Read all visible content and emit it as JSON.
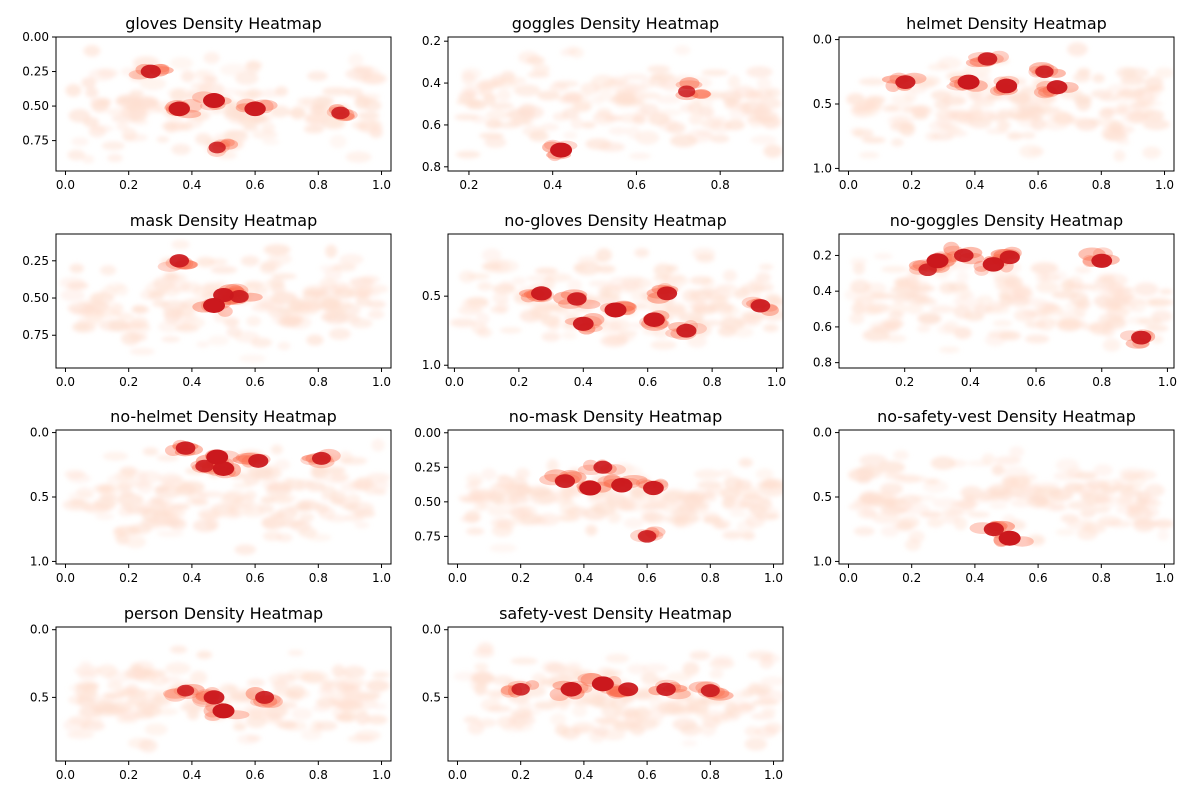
{
  "figure": {
    "background": "#ffffff"
  },
  "colormap": {
    "name": "Reds",
    "light": "#fee0d2",
    "mid": "#fb6a4a",
    "dark": "#cb181d"
  },
  "chart_data": [
    {
      "type": "heatmap",
      "title": "gloves Density Heatmap",
      "xlabel": "",
      "ylabel": "",
      "xlim": [
        -0.03,
        1.03
      ],
      "ylim": [
        0.97,
        0.0
      ],
      "y_inverted": true,
      "x_ticks": [
        0.0,
        0.2,
        0.4,
        0.6,
        0.8,
        1.0
      ],
      "x_tick_labels": [
        "0.0",
        "0.2",
        "0.4",
        "0.6",
        "0.8",
        "1.0"
      ],
      "y_ticks": [
        0.0,
        0.25,
        0.5,
        0.75
      ],
      "y_tick_labels": [
        "0.00",
        "0.25",
        "0.50",
        "0.75"
      ],
      "hotspots": [
        {
          "x": 0.47,
          "y": 0.46,
          "level": 1.0
        },
        {
          "x": 0.36,
          "y": 0.52,
          "level": 0.95
        },
        {
          "x": 0.6,
          "y": 0.52,
          "level": 0.95
        },
        {
          "x": 0.27,
          "y": 0.25,
          "level": 0.85
        },
        {
          "x": 0.87,
          "y": 0.55,
          "level": 0.7
        },
        {
          "x": 0.48,
          "y": 0.8,
          "level": 0.6
        }
      ],
      "spread": {
        "x": [
          0.02,
          1.0
        ],
        "y": [
          0.05,
          0.95
        ]
      }
    },
    {
      "type": "heatmap",
      "title": "goggles Density Heatmap",
      "xlabel": "",
      "ylabel": "",
      "xlim": [
        0.15,
        0.95
      ],
      "ylim": [
        0.82,
        0.18
      ],
      "y_inverted": true,
      "x_ticks": [
        0.2,
        0.4,
        0.6,
        0.8
      ],
      "x_tick_labels": [
        "0.2",
        "0.4",
        "0.6",
        "0.8"
      ],
      "y_ticks": [
        0.2,
        0.4,
        0.6,
        0.8
      ],
      "y_tick_labels": [
        "0.2",
        "0.4",
        "0.6",
        "0.8"
      ],
      "hotspots": [
        {
          "x": 0.42,
          "y": 0.72,
          "level": 1.0
        },
        {
          "x": 0.72,
          "y": 0.44,
          "level": 0.6
        }
      ],
      "spread": {
        "x": [
          0.18,
          0.93
        ],
        "y": [
          0.2,
          0.8
        ]
      }
    },
    {
      "type": "heatmap",
      "title": "helmet Density Heatmap",
      "xlabel": "",
      "ylabel": "",
      "xlim": [
        -0.03,
        1.03
      ],
      "ylim": [
        1.02,
        -0.02
      ],
      "y_inverted": true,
      "x_ticks": [
        0.0,
        0.2,
        0.4,
        0.6,
        0.8,
        1.0
      ],
      "x_tick_labels": [
        "0.0",
        "0.2",
        "0.4",
        "0.6",
        "0.8",
        "1.0"
      ],
      "y_ticks": [
        0.0,
        0.5,
        1.0
      ],
      "y_tick_labels": [
        "0.0",
        "0.5",
        "1.0"
      ],
      "hotspots": [
        {
          "x": 0.38,
          "y": 0.33,
          "level": 1.0
        },
        {
          "x": 0.5,
          "y": 0.36,
          "level": 0.95
        },
        {
          "x": 0.66,
          "y": 0.37,
          "level": 0.9
        },
        {
          "x": 0.18,
          "y": 0.33,
          "level": 0.85
        },
        {
          "x": 0.44,
          "y": 0.15,
          "level": 0.8
        },
        {
          "x": 0.62,
          "y": 0.25,
          "level": 0.7
        }
      ],
      "spread": {
        "x": [
          0.02,
          1.0
        ],
        "y": [
          0.05,
          1.0
        ]
      }
    },
    {
      "type": "heatmap",
      "title": "mask Density Heatmap",
      "xlabel": "",
      "ylabel": "",
      "xlim": [
        -0.03,
        1.03
      ],
      "ylim": [
        0.97,
        0.07
      ],
      "y_inverted": true,
      "x_ticks": [
        0.0,
        0.2,
        0.4,
        0.6,
        0.8,
        1.0
      ],
      "x_tick_labels": [
        "0.0",
        "0.2",
        "0.4",
        "0.6",
        "0.8",
        "1.0"
      ],
      "y_ticks": [
        0.25,
        0.5,
        0.75
      ],
      "y_tick_labels": [
        "0.25",
        "0.50",
        "0.75"
      ],
      "hotspots": [
        {
          "x": 0.47,
          "y": 0.55,
          "level": 1.0
        },
        {
          "x": 0.5,
          "y": 0.48,
          "level": 0.9
        },
        {
          "x": 0.36,
          "y": 0.25,
          "level": 0.8
        },
        {
          "x": 0.55,
          "y": 0.49,
          "level": 0.75
        }
      ],
      "spread": {
        "x": [
          0.02,
          1.0
        ],
        "y": [
          0.1,
          0.95
        ]
      }
    },
    {
      "type": "heatmap",
      "title": "no-gloves Density Heatmap",
      "xlabel": "",
      "ylabel": "",
      "xlim": [
        -0.02,
        1.02
      ],
      "ylim": [
        1.02,
        0.05
      ],
      "y_inverted": true,
      "x_ticks": [
        0.0,
        0.2,
        0.4,
        0.6,
        0.8,
        1.0
      ],
      "x_tick_labels": [
        "0.0",
        "0.2",
        "0.4",
        "0.6",
        "0.8",
        "1.0"
      ],
      "y_ticks": [
        0.5,
        1.0
      ],
      "y_tick_labels": [
        "0.5",
        "1.0"
      ],
      "hotspots": [
        {
          "x": 0.5,
          "y": 0.6,
          "level": 1.0
        },
        {
          "x": 0.62,
          "y": 0.67,
          "level": 0.95
        },
        {
          "x": 0.27,
          "y": 0.48,
          "level": 0.9
        },
        {
          "x": 0.4,
          "y": 0.7,
          "level": 0.9
        },
        {
          "x": 0.66,
          "y": 0.48,
          "level": 0.85
        },
        {
          "x": 0.72,
          "y": 0.75,
          "level": 0.85
        },
        {
          "x": 0.38,
          "y": 0.52,
          "level": 0.8
        },
        {
          "x": 0.95,
          "y": 0.57,
          "level": 0.8
        }
      ],
      "spread": {
        "x": [
          0.02,
          1.0
        ],
        "y": [
          0.1,
          1.0
        ]
      }
    },
    {
      "type": "heatmap",
      "title": "no-goggles Density Heatmap",
      "xlabel": "",
      "ylabel": "",
      "xlim": [
        0.0,
        1.02
      ],
      "ylim": [
        0.83,
        0.08
      ],
      "y_inverted": true,
      "x_ticks": [
        0.2,
        0.4,
        0.6,
        0.8,
        1.0
      ],
      "x_tick_labels": [
        "0.2",
        "0.4",
        "0.6",
        "0.8",
        "1.0"
      ],
      "y_ticks": [
        0.2,
        0.4,
        0.6,
        0.8
      ],
      "y_tick_labels": [
        "0.2",
        "0.4",
        "0.6",
        "0.8"
      ],
      "hotspots": [
        {
          "x": 0.3,
          "y": 0.23,
          "level": 1.0
        },
        {
          "x": 0.47,
          "y": 0.25,
          "level": 0.95
        },
        {
          "x": 0.8,
          "y": 0.23,
          "level": 0.9
        },
        {
          "x": 0.52,
          "y": 0.21,
          "level": 0.85
        },
        {
          "x": 0.38,
          "y": 0.2,
          "level": 0.8
        },
        {
          "x": 0.92,
          "y": 0.66,
          "level": 0.85
        },
        {
          "x": 0.27,
          "y": 0.28,
          "level": 0.7
        }
      ],
      "spread": {
        "x": [
          0.05,
          1.0
        ],
        "y": [
          0.1,
          0.8
        ]
      }
    },
    {
      "type": "heatmap",
      "title": "no-helmet Density Heatmap",
      "xlabel": "",
      "ylabel": "",
      "xlim": [
        -0.03,
        1.03
      ],
      "ylim": [
        1.02,
        -0.02
      ],
      "y_inverted": true,
      "x_ticks": [
        0.0,
        0.2,
        0.4,
        0.6,
        0.8,
        1.0
      ],
      "x_tick_labels": [
        "0.0",
        "0.2",
        "0.4",
        "0.6",
        "0.8",
        "1.0"
      ],
      "y_ticks": [
        0.0,
        0.5,
        1.0
      ],
      "y_tick_labels": [
        "0.0",
        "0.5",
        "1.0"
      ],
      "hotspots": [
        {
          "x": 0.48,
          "y": 0.19,
          "level": 1.0
        },
        {
          "x": 0.5,
          "y": 0.28,
          "level": 0.95
        },
        {
          "x": 0.61,
          "y": 0.22,
          "level": 0.85
        },
        {
          "x": 0.38,
          "y": 0.12,
          "level": 0.8
        },
        {
          "x": 0.81,
          "y": 0.2,
          "level": 0.75
        },
        {
          "x": 0.44,
          "y": 0.26,
          "level": 0.7
        }
      ],
      "spread": {
        "x": [
          0.02,
          1.0
        ],
        "y": [
          0.02,
          1.0
        ]
      }
    },
    {
      "type": "heatmap",
      "title": "no-mask Density Heatmap",
      "xlabel": "",
      "ylabel": "",
      "xlim": [
        -0.03,
        1.03
      ],
      "ylim": [
        0.95,
        -0.02
      ],
      "y_inverted": true,
      "x_ticks": [
        0.0,
        0.2,
        0.4,
        0.6,
        0.8,
        1.0
      ],
      "x_tick_labels": [
        "0.0",
        "0.2",
        "0.4",
        "0.6",
        "0.8",
        "1.0"
      ],
      "y_ticks": [
        0.0,
        0.25,
        0.5,
        0.75
      ],
      "y_tick_labels": [
        "0.00",
        "0.25",
        "0.50",
        "0.75"
      ],
      "hotspots": [
        {
          "x": 0.42,
          "y": 0.4,
          "level": 1.0
        },
        {
          "x": 0.52,
          "y": 0.38,
          "level": 0.95
        },
        {
          "x": 0.62,
          "y": 0.4,
          "level": 0.9
        },
        {
          "x": 0.34,
          "y": 0.35,
          "level": 0.85
        },
        {
          "x": 0.46,
          "y": 0.25,
          "level": 0.75
        },
        {
          "x": 0.6,
          "y": 0.75,
          "level": 0.7
        }
      ],
      "spread": {
        "x": [
          0.02,
          1.0
        ],
        "y": [
          0.1,
          0.9
        ]
      }
    },
    {
      "type": "heatmap",
      "title": "no-safety-vest Density Heatmap",
      "xlabel": "",
      "ylabel": "",
      "xlim": [
        -0.03,
        1.03
      ],
      "ylim": [
        1.02,
        -0.02
      ],
      "y_inverted": true,
      "x_ticks": [
        0.0,
        0.2,
        0.4,
        0.6,
        0.8,
        1.0
      ],
      "x_tick_labels": [
        "0.0",
        "0.2",
        "0.4",
        "0.6",
        "0.8",
        "1.0"
      ],
      "y_ticks": [
        0.0,
        0.5,
        1.0
      ],
      "y_tick_labels": [
        "0.0",
        "0.5",
        "1.0"
      ],
      "hotspots": [
        {
          "x": 0.51,
          "y": 0.82,
          "level": 1.0
        },
        {
          "x": 0.46,
          "y": 0.75,
          "level": 0.85
        }
      ],
      "spread": {
        "x": [
          0.02,
          1.0
        ],
        "y": [
          0.05,
          0.95
        ]
      }
    },
    {
      "type": "heatmap",
      "title": "person Density Heatmap",
      "xlabel": "",
      "ylabel": "",
      "xlim": [
        -0.03,
        1.03
      ],
      "ylim": [
        0.97,
        -0.02
      ],
      "y_inverted": true,
      "x_ticks": [
        0.0,
        0.2,
        0.4,
        0.6,
        0.8,
        1.0
      ],
      "x_tick_labels": [
        "0.0",
        "0.2",
        "0.4",
        "0.6",
        "0.8",
        "1.0"
      ],
      "y_ticks": [
        0.0,
        0.5
      ],
      "y_tick_labels": [
        "0.0",
        "0.5"
      ],
      "hotspots": [
        {
          "x": 0.5,
          "y": 0.6,
          "level": 1.0
        },
        {
          "x": 0.47,
          "y": 0.5,
          "level": 0.9
        },
        {
          "x": 0.63,
          "y": 0.5,
          "level": 0.75
        },
        {
          "x": 0.38,
          "y": 0.45,
          "level": 0.6
        }
      ],
      "spread": {
        "x": [
          0.02,
          1.0
        ],
        "y": [
          0.05,
          0.95
        ]
      }
    },
    {
      "type": "heatmap",
      "title": "safety-vest Density Heatmap",
      "xlabel": "",
      "ylabel": "",
      "xlim": [
        -0.03,
        1.03
      ],
      "ylim": [
        0.97,
        -0.02
      ],
      "y_inverted": true,
      "x_ticks": [
        0.0,
        0.2,
        0.4,
        0.6,
        0.8,
        1.0
      ],
      "x_tick_labels": [
        "0.0",
        "0.2",
        "0.4",
        "0.6",
        "0.8",
        "1.0"
      ],
      "y_ticks": [
        0.0,
        0.5
      ],
      "y_tick_labels": [
        "0.0",
        "0.5"
      ],
      "hotspots": [
        {
          "x": 0.46,
          "y": 0.4,
          "level": 1.0
        },
        {
          "x": 0.36,
          "y": 0.44,
          "level": 0.95
        },
        {
          "x": 0.54,
          "y": 0.44,
          "level": 0.85
        },
        {
          "x": 0.66,
          "y": 0.44,
          "level": 0.8
        },
        {
          "x": 0.8,
          "y": 0.45,
          "level": 0.75
        },
        {
          "x": 0.2,
          "y": 0.44,
          "level": 0.7
        }
      ],
      "spread": {
        "x": [
          0.02,
          1.0
        ],
        "y": [
          0.05,
          0.95
        ]
      }
    }
  ]
}
